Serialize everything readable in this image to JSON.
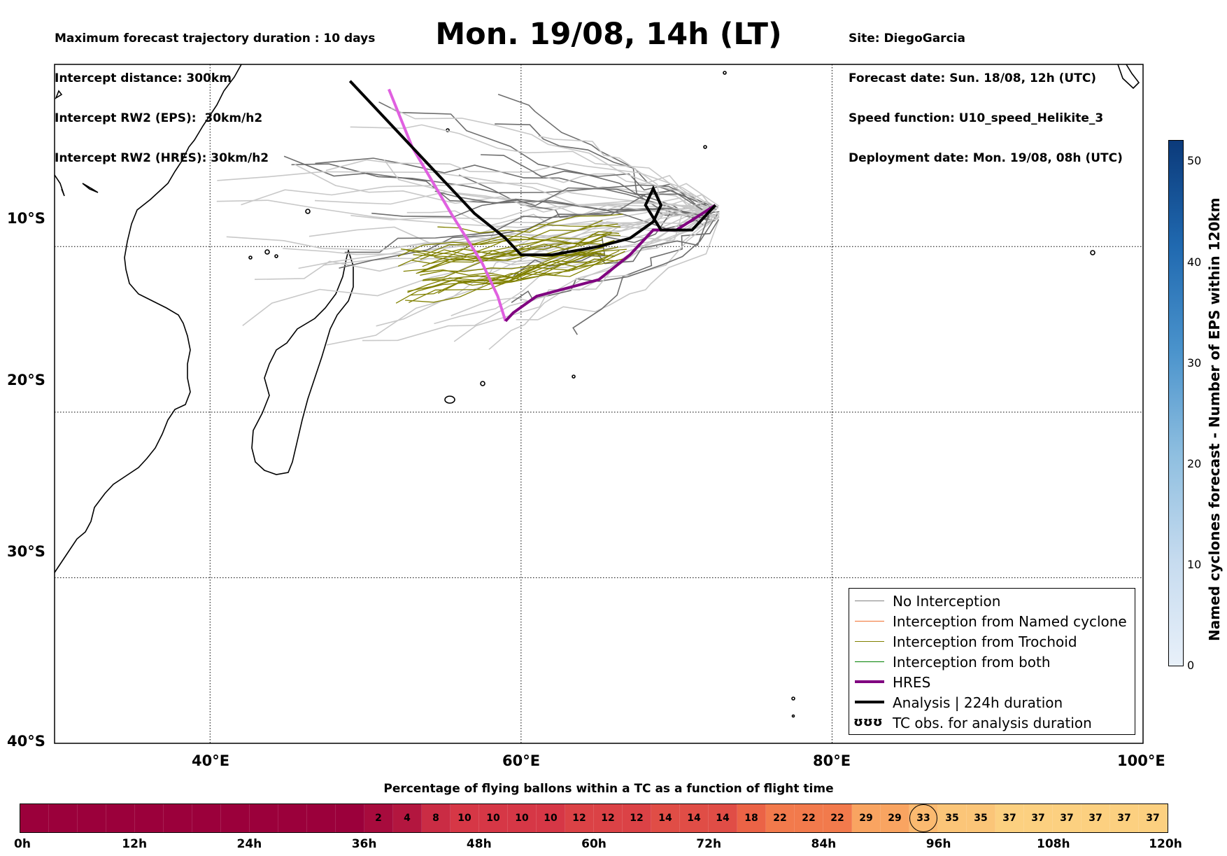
{
  "header_left": [
    "Maximum forecast trajectory duration : 10 days",
    "Intercept distance: 300km",
    "Intercept RW2 (EPS):  30km/h2",
    "Intercept RW2 (HRES): 30km/h2"
  ],
  "header_right": [
    "Site: DiegoGarcia",
    "Forecast date: Sun. 18/08, 12h (UTC)",
    "Speed function: U10_speed_Helikite_3",
    "Deployment date: Mon. 19/08, 08h (UTC)"
  ],
  "title": "Mon. 19/08, 14h (LT)",
  "map": {
    "lon_range": [
      30,
      100
    ],
    "lat_range": [
      -40,
      1
    ],
    "lon_ticks": [
      "40°E",
      "60°E",
      "80°E",
      "100°E"
    ],
    "lat_ticks": [
      "10°S",
      "20°S",
      "30°S",
      "40°S"
    ],
    "grid": "dotted"
  },
  "colorbar": {
    "label": "Named cyclones forecast - Number of EPS within 120km",
    "ticks": [
      "0",
      "10",
      "20",
      "30",
      "40",
      "50"
    ],
    "range": [
      0,
      52
    ],
    "colors": [
      "#e8f0f9",
      "#0b3a7a"
    ]
  },
  "legend": {
    "items": [
      {
        "label": "No Interception",
        "color": "#808080"
      },
      {
        "label": "Interception from Named cyclone",
        "color": "#f07030"
      },
      {
        "label": "Interception from Trochoid",
        "color": "#808000"
      },
      {
        "label": "Interception from both",
        "color": "#008000"
      },
      {
        "label": "HRES",
        "color": "#800080"
      },
      {
        "label": "Analysis | 224h duration",
        "color": "#000000"
      },
      {
        "label": "TC obs. for analysis duration",
        "symbol": "ʊʊʊ"
      }
    ]
  },
  "flight_bar": {
    "title": "Percentage of flying ballons within a TC as a function of flight time",
    "time_labels": [
      "0h",
      "12h",
      "24h",
      "36h",
      "48h",
      "60h",
      "72h",
      "84h",
      "96h",
      "108h",
      "120h"
    ],
    "values": [
      0,
      0,
      0,
      0,
      0,
      0,
      0,
      0,
      0,
      0,
      0,
      0,
      2,
      4,
      8,
      10,
      10,
      10,
      10,
      12,
      12,
      12,
      14,
      14,
      14,
      18,
      22,
      22,
      22,
      29,
      29,
      33,
      35,
      35,
      37,
      37,
      37,
      37,
      37,
      37
    ],
    "highlight_index": 31
  },
  "chart_data": {
    "type": "map-trajectories",
    "site": "DiegoGarcia",
    "hres_track": [
      [
        51.5,
        -0.5
      ],
      [
        53,
        -4
      ],
      [
        55.5,
        -8
      ],
      [
        57.5,
        -11
      ],
      [
        58.5,
        -13
      ],
      [
        59,
        -14.5
      ],
      [
        59.5,
        -14
      ],
      [
        61,
        -13
      ],
      [
        65,
        -12
      ],
      [
        67,
        -10.5
      ],
      [
        68.5,
        -9
      ],
      [
        70,
        -9
      ],
      [
        72.5,
        -7.5
      ]
    ],
    "hres_early_color": "#e060e0",
    "analysis_track": [
      [
        49,
        0
      ],
      [
        52,
        -3
      ],
      [
        55,
        -6
      ],
      [
        57,
        -8
      ],
      [
        59,
        -9.5
      ],
      [
        60,
        -10.5
      ],
      [
        62,
        -10.5
      ],
      [
        65,
        -10
      ],
      [
        67,
        -9.5
      ],
      [
        68.5,
        -8.5
      ],
      [
        69,
        -7.5
      ],
      [
        68.5,
        -6.5
      ],
      [
        68,
        -7.5
      ],
      [
        69,
        -9
      ],
      [
        71,
        -9
      ],
      [
        72.5,
        -7.5
      ]
    ]
  }
}
